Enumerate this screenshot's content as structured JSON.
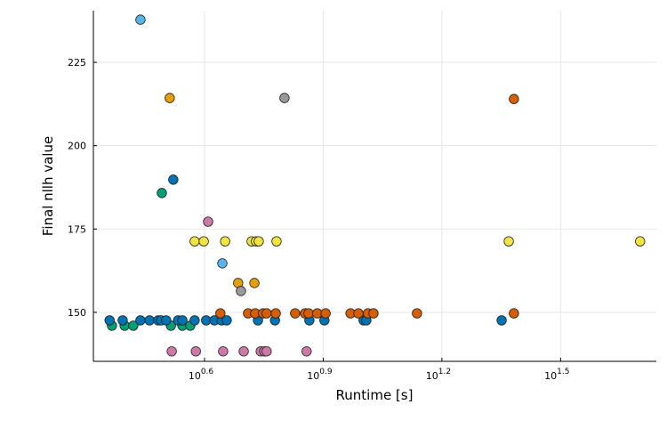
{
  "chart_data": {
    "type": "scatter",
    "title": "",
    "xlabel": "Runtime [s]",
    "ylabel": "Final nllh value",
    "xscale": "log10",
    "x_note": "x values given as log10(runtime in s)",
    "xlim_log10": [
      0.319,
      1.742
    ],
    "ylim": [
      135.3,
      240.5
    ],
    "grid": true,
    "legend": "none",
    "x_ticks": [
      {
        "base": "10",
        "exp": "0.6",
        "value": 0.6
      },
      {
        "base": "10",
        "exp": "0.9",
        "value": 0.9
      },
      {
        "base": "10",
        "exp": "1.2",
        "value": 1.2
      },
      {
        "base": "10",
        "exp": "1.5",
        "value": 1.5
      }
    ],
    "y_ticks": [
      {
        "label": "150",
        "value": 150
      },
      {
        "label": "175",
        "value": 175
      },
      {
        "label": "200",
        "value": 200
      },
      {
        "label": "225",
        "value": 225
      }
    ],
    "series": [
      {
        "name": "s1",
        "color": "#56B4E9",
        "x": [
          0.438,
          0.645
        ],
        "y": [
          237.8,
          164.7
        ]
      },
      {
        "name": "s2",
        "color": "#E69F00",
        "x": [
          0.512,
          0.685,
          0.726
        ],
        "y": [
          214.3,
          158.8,
          158.8
        ]
      },
      {
        "name": "s3",
        "color": "#009E73",
        "x": [
          0.492,
          0.366,
          0.398,
          0.42,
          0.515,
          0.544,
          0.564
        ],
        "y": [
          185.8,
          146,
          146,
          146,
          146,
          146,
          146
        ]
      },
      {
        "name": "s4",
        "color": "#F0E442",
        "x": [
          0.575,
          0.598,
          0.652,
          0.719,
          0.73,
          0.737,
          0.782,
          1.369,
          1.701
        ],
        "y": [
          171.3,
          171.3,
          171.3,
          171.3,
          171.3,
          171.3,
          171.3,
          171.3,
          171.3
        ]
      },
      {
        "name": "s5",
        "color": "#0072B2",
        "x": [
          0.521,
          0.36,
          0.393,
          0.438,
          0.461,
          0.483,
          0.49,
          0.503,
          0.533,
          0.544,
          0.575,
          0.604,
          0.625,
          0.643,
          0.656,
          0.735,
          0.778,
          0.865,
          0.903,
          1.002,
          1.009,
          1.351
        ],
        "y": [
          189.8,
          147.6,
          147.6,
          147.6,
          147.6,
          147.6,
          147.6,
          147.6,
          147.6,
          147.6,
          147.6,
          147.6,
          147.6,
          147.6,
          147.6,
          147.6,
          147.6,
          147.6,
          147.6,
          147.6,
          147.6,
          147.6
        ]
      },
      {
        "name": "s6",
        "color": "#D55E00",
        "x": [
          1.382,
          0.64,
          0.71,
          0.728,
          0.748,
          0.757,
          0.78,
          0.829,
          0.854,
          0.863,
          0.885,
          0.906,
          0.969,
          0.989,
          1.013,
          1.027,
          1.137,
          1.382
        ],
        "y": [
          214.0,
          149.7,
          149.7,
          149.7,
          149.7,
          149.7,
          149.7,
          149.7,
          149.7,
          149.7,
          149.7,
          149.7,
          149.7,
          149.7,
          149.7,
          149.7,
          149.7,
          149.7
        ]
      },
      {
        "name": "s7",
        "color": "#CC79A7",
        "x": [
          0.609,
          0.517,
          0.578,
          0.647,
          0.699,
          0.742,
          0.751,
          0.757,
          0.858
        ],
        "y": [
          177.2,
          138.3,
          138.3,
          138.3,
          138.3,
          138.3,
          138.3,
          138.3,
          138.3
        ]
      },
      {
        "name": "s8",
        "color": "#999999",
        "x": [
          0.692,
          0.802
        ],
        "y": [
          156.4,
          214.3
        ]
      }
    ]
  }
}
